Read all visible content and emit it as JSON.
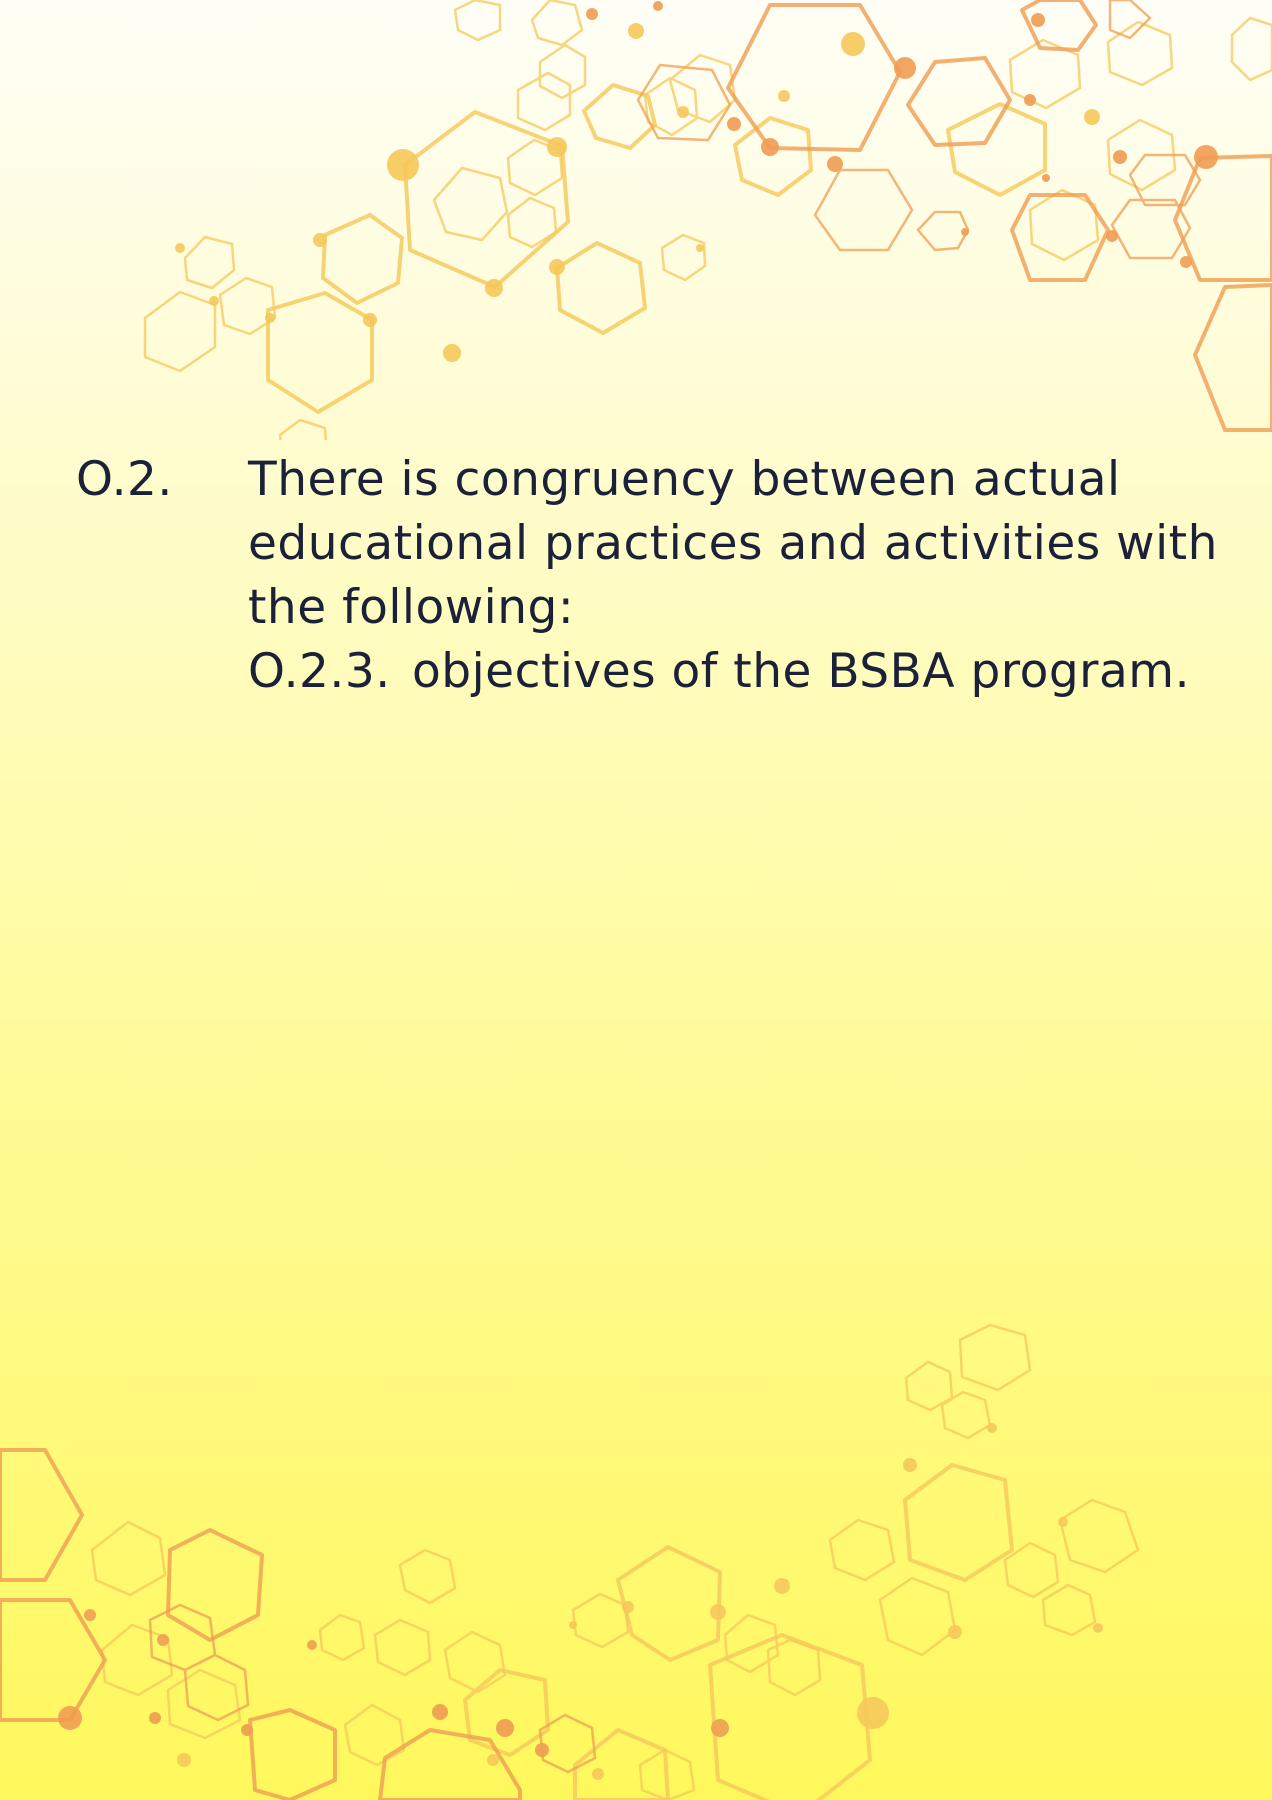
{
  "item": {
    "number": "O.2.",
    "text": "There is congruency between actual educational practices and activities with the following:",
    "sub_item": {
      "number": "O.2.3.",
      "text": "objectives of the BSBA program."
    }
  },
  "colors": {
    "text": "#1b2138",
    "hex_yellow": "#f6c85a",
    "hex_orange": "#ef9d52",
    "background_top": "#fffef6",
    "background_bottom": "#fff85c"
  }
}
